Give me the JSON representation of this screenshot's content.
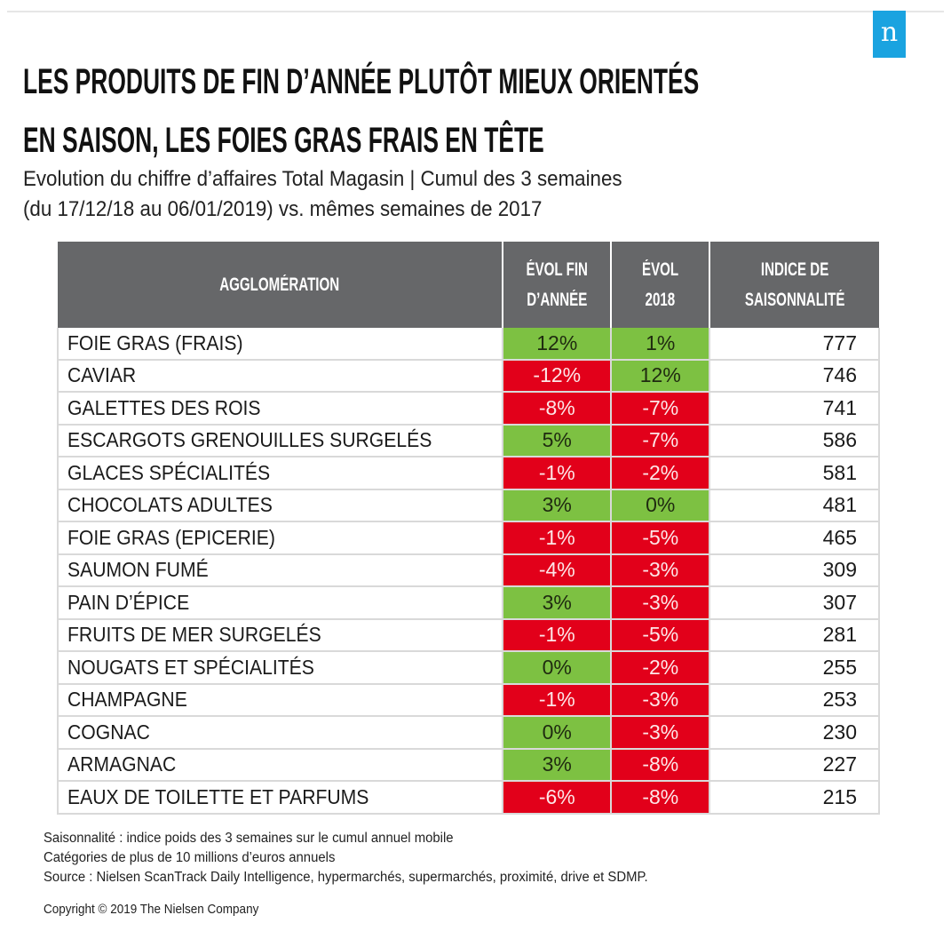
{
  "brand": {
    "logo_letter": "n",
    "logo_color": "#1aa3e0"
  },
  "header": {
    "title_line1": "LES PRODUITS DE FIN D’ANNÉE PLUTÔT MIEUX ORIENTÉS",
    "title_line2": "EN SAISON, LES FOIES GRAS FRAIS EN TÊTE",
    "subtitle_line1": "Evolution du chiffre d’affaires Total Magasin | Cumul des 3 semaines",
    "subtitle_line2": "(du 17/12/18 au 06/01/2019) vs. mêmes semaines de 2017"
  },
  "colors": {
    "header_bg": "#666769",
    "positive": "#7dc142",
    "negative": "#e2001a"
  },
  "chart_data": {
    "type": "table",
    "title": "LES PRODUITS DE FIN D’ANNÉE PLUTÔT MIEUX ORIENTÉS EN SAISON, LES FOIES GRAS FRAIS EN TÊTE",
    "subtitle": "Evolution du chiffre d’affaires Total Magasin | Cumul des 3 semaines (du 17/12/18 au 06/01/2019) vs. mêmes semaines de 2017",
    "columns": [
      {
        "key": "name",
        "label_line1": "AGGLOMÉRATION",
        "label_line2": ""
      },
      {
        "key": "evol_fin_annee",
        "label_line1": "ÉVOL FIN",
        "label_line2": "D’ANNÉE"
      },
      {
        "key": "evol_2018",
        "label_line1": "ÉVOL",
        "label_line2": "2018"
      },
      {
        "key": "indice",
        "label_line1": "INDICE DE",
        "label_line2": "SAISONNALITÉ"
      }
    ],
    "rows": [
      {
        "name": "FOIE GRAS (FRAIS)",
        "evol_fin_annee": 12,
        "evol_2018": 1,
        "indice": 777
      },
      {
        "name": "CAVIAR",
        "evol_fin_annee": -12,
        "evol_2018": 12,
        "indice": 746
      },
      {
        "name": "GALETTES DES ROIS",
        "evol_fin_annee": -8,
        "evol_2018": -7,
        "indice": 741
      },
      {
        "name": "ESCARGOTS GRENOUILLES SURGELÉS",
        "evol_fin_annee": 5,
        "evol_2018": -7,
        "indice": 586
      },
      {
        "name": "GLACES SPÉCIALITÉS",
        "evol_fin_annee": -1,
        "evol_2018": -2,
        "indice": 581
      },
      {
        "name": "CHOCOLATS ADULTES",
        "evol_fin_annee": 3,
        "evol_2018": 0,
        "indice": 481
      },
      {
        "name": "FOIE GRAS (EPICERIE)",
        "evol_fin_annee": -1,
        "evol_2018": -5,
        "indice": 465
      },
      {
        "name": "SAUMON FUMÉ",
        "evol_fin_annee": -4,
        "evol_2018": -3,
        "indice": 309
      },
      {
        "name": "PAIN D’ÉPICE",
        "evol_fin_annee": 3,
        "evol_2018": -3,
        "indice": 307
      },
      {
        "name": "FRUITS DE MER SURGELÉS",
        "evol_fin_annee": -1,
        "evol_2018": -5,
        "indice": 281
      },
      {
        "name": "NOUGATS ET SPÉCIALITÉS",
        "evol_fin_annee": 0,
        "evol_2018": -2,
        "indice": 255
      },
      {
        "name": "CHAMPAGNE",
        "evol_fin_annee": -1,
        "evol_2018": -3,
        "indice": 253
      },
      {
        "name": "COGNAC",
        "evol_fin_annee": 0,
        "evol_2018": -3,
        "indice": 230
      },
      {
        "name": "ARMAGNAC",
        "evol_fin_annee": 3,
        "evol_2018": -8,
        "indice": 227
      },
      {
        "name": "EAUX DE TOILETTE ET PARFUMS",
        "evol_fin_annee": -6,
        "evol_2018": -8,
        "indice": 215
      }
    ]
  },
  "notes": [
    "Saisonnalité : indice poids des 3 semaines sur le cumul annuel mobile",
    "Catégories de  plus de 10 millions d’euros annuels",
    "Source : Nielsen ScanTrack Daily Intelligence, hypermarchés, supermarchés, proximité, drive et SDMP."
  ],
  "copyright": "Copyright © 2019 The Nielsen Company"
}
